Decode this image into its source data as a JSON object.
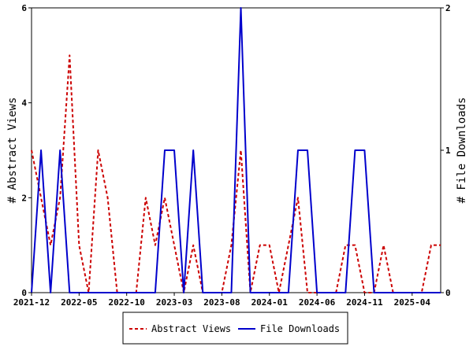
{
  "chart_data": {
    "type": "line",
    "x_tick_labels": [
      "2021-12",
      "2022-05",
      "2022-10",
      "2023-03",
      "2023-08",
      "2024-01",
      "2024-06",
      "2024-11",
      "2025-04"
    ],
    "y_left": {
      "label": "# Abstract Views",
      "ylim": [
        0,
        6
      ],
      "ticks": [
        "0",
        "2",
        "4",
        "6"
      ]
    },
    "y_right": {
      "label": "# File Downloads",
      "ylim": [
        0,
        2
      ],
      "ticks": [
        "0",
        "1",
        "2"
      ]
    },
    "series": [
      {
        "name": "Abstract Views",
        "axis": "left",
        "color": "#cc0000",
        "style": "dashed",
        "x": [
          0,
          1,
          2,
          3,
          4,
          5,
          6,
          7,
          8,
          9,
          10,
          11,
          12,
          13,
          14,
          15,
          16,
          17,
          18,
          19,
          20,
          21,
          22,
          23,
          24,
          25,
          26,
          27,
          28,
          29,
          30,
          31,
          32,
          33,
          34,
          35,
          36,
          37,
          38,
          39,
          40,
          41,
          42,
          43
        ],
        "values": [
          3,
          2,
          1,
          2,
          5,
          1,
          0,
          3,
          2,
          0,
          0,
          0,
          2,
          1,
          2,
          1,
          0,
          1,
          0,
          0,
          0,
          1,
          3,
          0,
          1,
          1,
          0,
          1,
          2,
          0,
          0,
          0,
          0,
          1,
          1,
          0,
          0,
          1,
          0,
          0,
          0,
          0,
          1,
          1
        ]
      },
      {
        "name": "File Downloads",
        "axis": "right",
        "color": "#0000cc",
        "style": "solid",
        "x": [
          0,
          1,
          2,
          3,
          4,
          5,
          6,
          7,
          8,
          9,
          10,
          11,
          12,
          13,
          14,
          15,
          16,
          17,
          18,
          19,
          20,
          21,
          22,
          23,
          24,
          25,
          26,
          27,
          28,
          29,
          30,
          31,
          32,
          33,
          34,
          35,
          36,
          37,
          38,
          39,
          40,
          41,
          42,
          43
        ],
        "values": [
          0,
          1,
          0,
          1,
          0,
          0,
          0,
          0,
          0,
          0,
          0,
          0,
          0,
          0,
          1,
          1,
          0,
          1,
          0,
          0,
          0,
          0,
          2,
          0,
          0,
          0,
          0,
          0,
          1,
          1,
          0,
          0,
          0,
          0,
          1,
          1,
          0,
          0,
          0,
          0,
          0,
          0,
          0,
          0
        ]
      }
    ],
    "legend": {
      "placement": "bottom"
    },
    "grid": false
  }
}
